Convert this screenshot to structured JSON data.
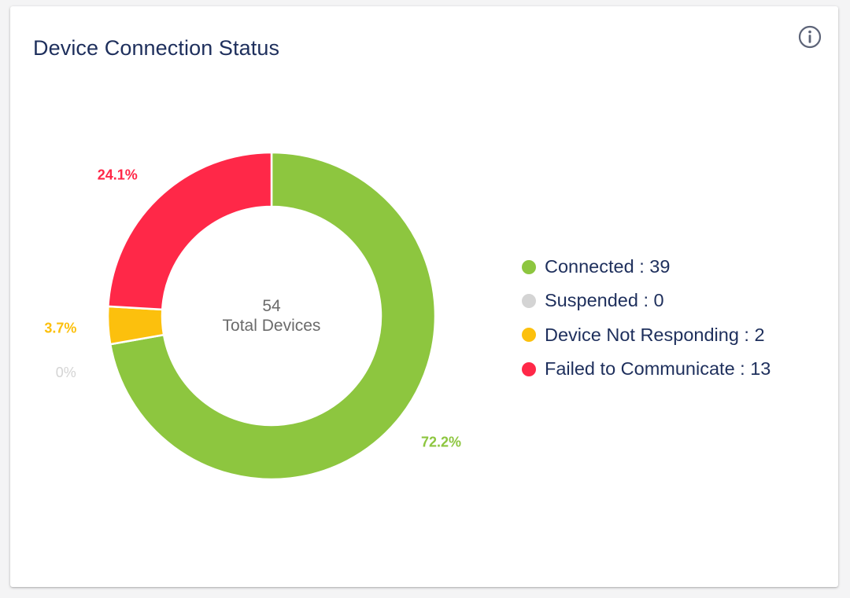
{
  "card": {
    "title": "Device Connection Status",
    "info_icon": "info-circle-icon"
  },
  "chart_data": {
    "type": "pie",
    "variant": "donut",
    "title": "Device Connection Status",
    "center_value": "54",
    "center_label": "Total Devices",
    "total": 54,
    "series": [
      {
        "name": "Connected",
        "value": 39,
        "percent_label": "72.2%",
        "color": "#8dc63f"
      },
      {
        "name": "Suspended",
        "value": 0,
        "percent_label": "0%",
        "color": "#d4d4d4"
      },
      {
        "name": "Device Not Responding",
        "value": 2,
        "percent_label": "3.7%",
        "color": "#fcc00d"
      },
      {
        "name": "Failed to Communicate",
        "value": 13,
        "percent_label": "24.1%",
        "color": "#ff2848"
      }
    ],
    "legend": {
      "placement": "right",
      "items": [
        "Connected : 39",
        "Suspended : 0",
        "Device Not Responding : 2",
        "Failed to Communicate : 13"
      ]
    }
  }
}
